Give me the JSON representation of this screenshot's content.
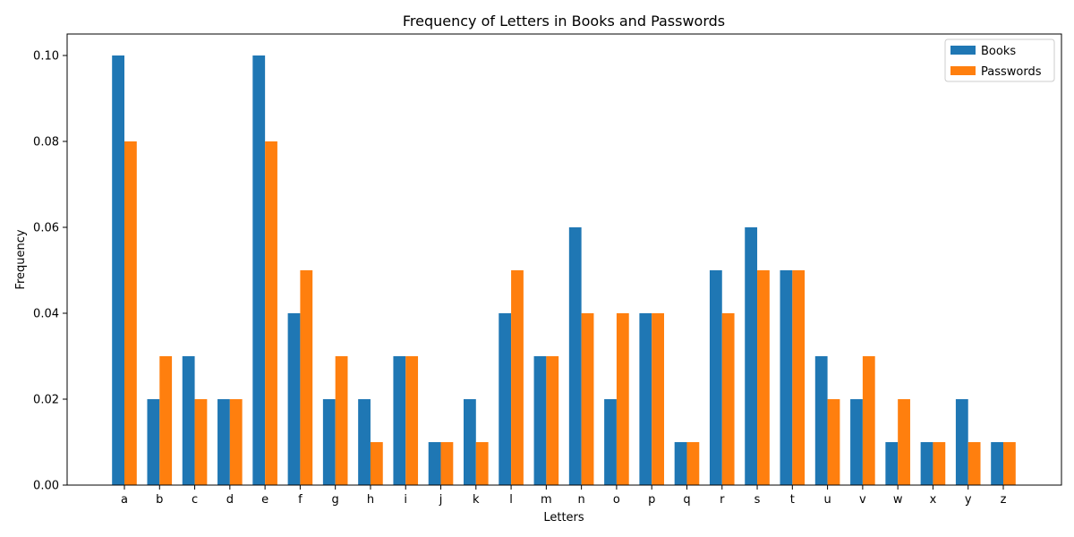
{
  "chart_data": {
    "type": "bar",
    "title": "Frequency of Letters in Books and Passwords",
    "xlabel": "Letters",
    "ylabel": "Frequency",
    "ylim": [
      0,
      0.105
    ],
    "yticks": [
      "0.00",
      "0.02",
      "0.04",
      "0.06",
      "0.08",
      "0.10"
    ],
    "categories": [
      "a",
      "b",
      "c",
      "d",
      "e",
      "f",
      "g",
      "h",
      "i",
      "j",
      "k",
      "l",
      "m",
      "n",
      "o",
      "p",
      "q",
      "r",
      "s",
      "t",
      "u",
      "v",
      "w",
      "x",
      "y",
      "z"
    ],
    "series": [
      {
        "name": "Books",
        "color": "#1f77b4",
        "values": [
          0.1,
          0.02,
          0.03,
          0.02,
          0.1,
          0.04,
          0.02,
          0.02,
          0.03,
          0.01,
          0.02,
          0.04,
          0.03,
          0.06,
          0.02,
          0.04,
          0.01,
          0.05,
          0.06,
          0.05,
          0.03,
          0.02,
          0.01,
          0.01,
          0.02,
          0.01
        ]
      },
      {
        "name": "Passwords",
        "color": "#ff7f0e",
        "values": [
          0.08,
          0.03,
          0.02,
          0.02,
          0.08,
          0.05,
          0.03,
          0.01,
          0.03,
          0.01,
          0.01,
          0.05,
          0.03,
          0.04,
          0.04,
          0.04,
          0.01,
          0.04,
          0.05,
          0.05,
          0.02,
          0.03,
          0.02,
          0.01,
          0.01,
          0.01
        ]
      }
    ],
    "grid": false,
    "legend_position": "top-right"
  }
}
